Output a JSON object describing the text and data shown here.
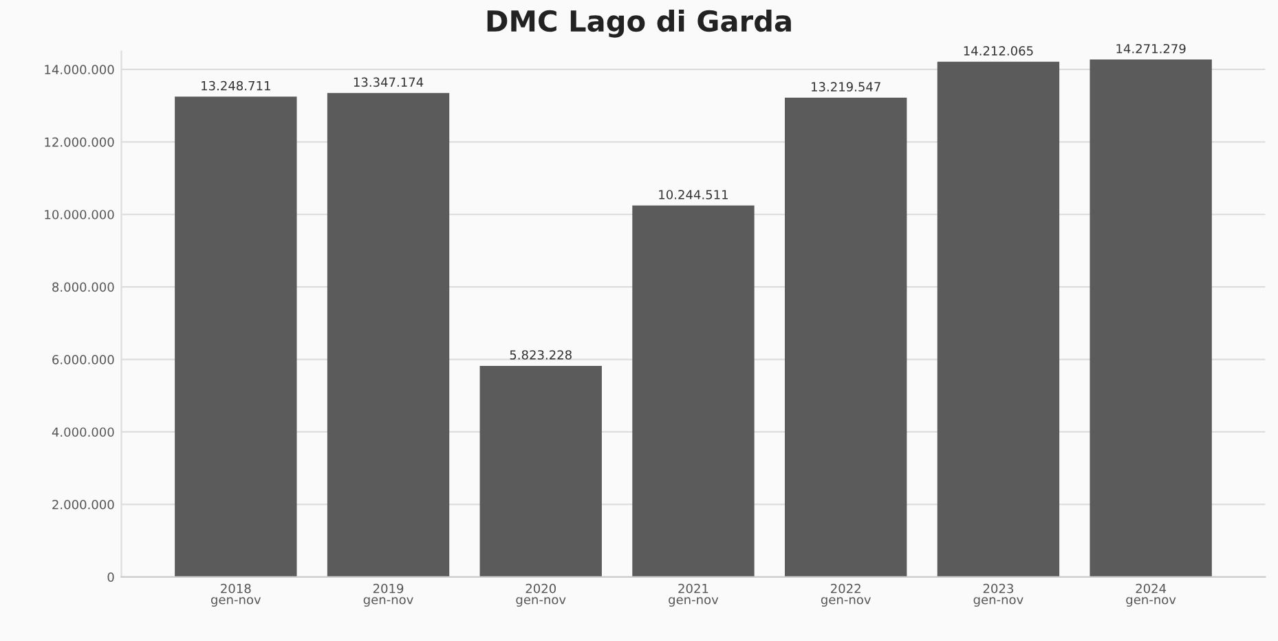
{
  "chart_data": {
    "type": "bar",
    "title": "DMC Lago di Garda",
    "categories": [
      "2018\ngen-nov",
      "2019\ngen-nov",
      "2020\ngen-nov",
      "2021\ngen-nov",
      "2022\ngen-nov",
      "2023\ngen-nov",
      "2024\ngen-nov"
    ],
    "values": [
      13248711,
      13347174,
      5823228,
      10244511,
      13219547,
      14212065,
      14271279
    ],
    "value_labels": [
      "13.248.711",
      "13.347.174",
      "5.823.228",
      "10.244.511",
      "13.219.547",
      "14.212.065",
      "14.271.279"
    ],
    "color": "#5b5b5b",
    "ylim": [
      0,
      14500000
    ],
    "yticks": [
      0,
      {
        "value": 2000000,
        "label": "2.000.000"
      },
      {
        "value": 4000000,
        "label": "4.000.000"
      },
      {
        "value": 6000000,
        "label": "6.000.000"
      },
      {
        "value": 8000000,
        "label": "8.000.000"
      },
      {
        "value": 10000000,
        "label": "10.000.000"
      },
      {
        "value": 12000000,
        "label": "12.000.000"
      },
      {
        "value": 14000000,
        "label": "14.000.000"
      }
    ],
    "grid": "y",
    "legend": false
  }
}
